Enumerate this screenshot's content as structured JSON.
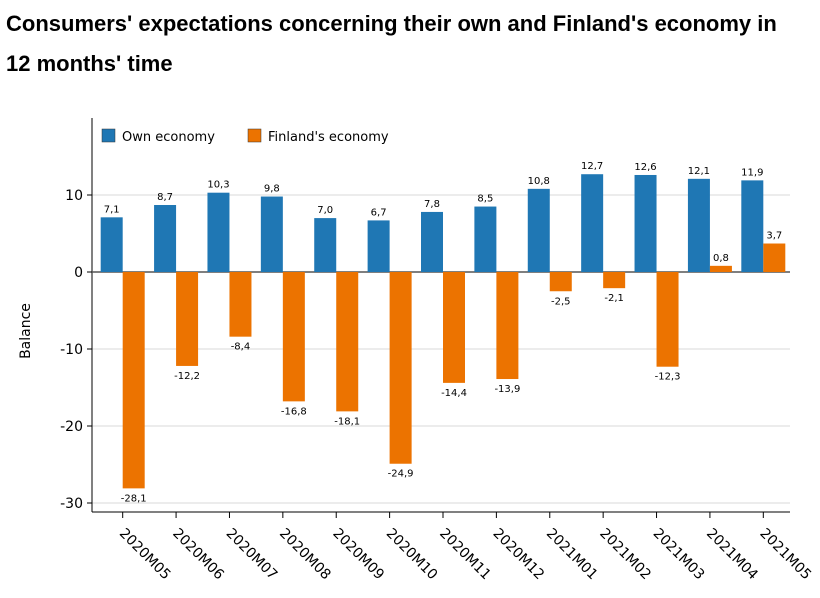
{
  "chart_data": {
    "type": "bar",
    "title": "Consumers' expectations concerning their own and Finland's economy in 12 months' time",
    "xlabel": "",
    "ylabel": "Balance",
    "ylim": [
      -31,
      20
    ],
    "yticks": [
      10,
      0,
      -10,
      -20,
      -30
    ],
    "grid": true,
    "legend_position": "top-left",
    "categories": [
      "2020M05",
      "2020M06",
      "2020M07",
      "2020M08",
      "2020M09",
      "2020M10",
      "2020M11",
      "2020M12",
      "2021M01",
      "2021M02",
      "2021M03",
      "2021M04",
      "2021M05"
    ],
    "series": [
      {
        "name": "Own economy",
        "color": "#1f77b4",
        "values": [
          7.1,
          8.7,
          10.3,
          9.8,
          7.0,
          6.7,
          7.8,
          8.5,
          10.8,
          12.7,
          12.6,
          12.1,
          11.9
        ],
        "labels": [
          "7,1",
          "8,7",
          "10,3",
          "9,8",
          "7,0",
          "6,7",
          "7,8",
          "8,5",
          "10,8",
          "12,7",
          "12,6",
          "12,1",
          "11,9"
        ]
      },
      {
        "name": "Finland's economy",
        "color": "#ec7300",
        "values": [
          -28.1,
          -12.2,
          -8.4,
          -16.8,
          -18.1,
          -24.9,
          -14.4,
          -13.9,
          -2.5,
          -2.1,
          -12.3,
          0.8,
          3.7
        ],
        "labels": [
          "-28,1",
          "-12,2",
          "-8,4",
          "-16,8",
          "-18,1",
          "-24,9",
          "-14,4",
          "-13,9",
          "-2,5",
          "-2,1",
          "-12,3",
          "0,8",
          "3,7"
        ]
      }
    ]
  }
}
